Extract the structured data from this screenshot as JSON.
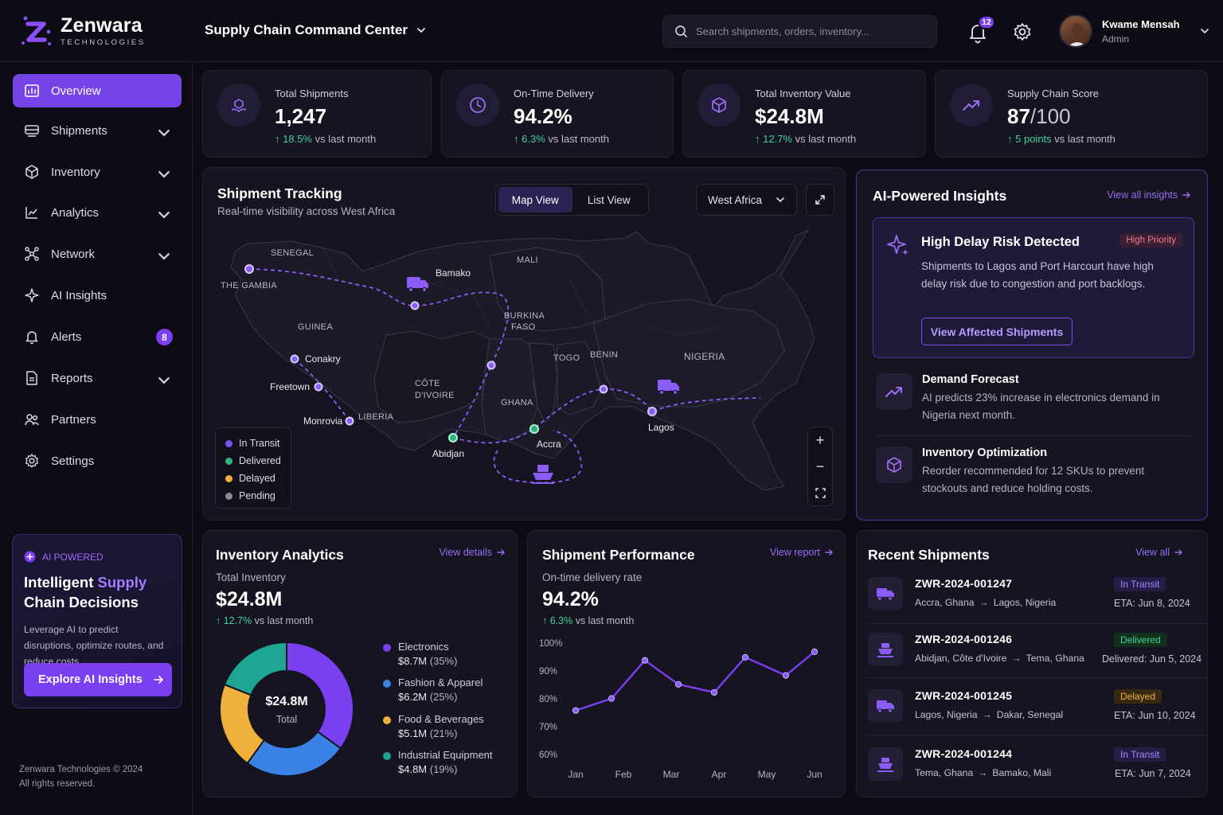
{
  "brand": {
    "name": "Zenwara",
    "sub": "TECHNOLOGIES"
  },
  "header": {
    "title": "Supply Chain Command Center",
    "search_placeholder": "Search shipments, orders, inventory...",
    "notifications": "12",
    "user_name": "Kwame Mensah",
    "user_role": "Admin"
  },
  "sidebar": {
    "items": [
      {
        "label": "Overview",
        "icon": "overview-icon",
        "active": true
      },
      {
        "label": "Shipments",
        "icon": "shipments-icon",
        "chevron": true
      },
      {
        "label": "Inventory",
        "icon": "inventory-icon",
        "chevron": true
      },
      {
        "label": "Analytics",
        "icon": "analytics-icon",
        "chevron": true
      },
      {
        "label": "Network",
        "icon": "network-icon",
        "chevron": true
      },
      {
        "label": "AI Insights",
        "icon": "sparkle-icon"
      },
      {
        "label": "Alerts",
        "icon": "bell-icon",
        "badge": "8"
      },
      {
        "label": "Reports",
        "icon": "reports-icon",
        "chevron": true
      },
      {
        "label": "Partners",
        "icon": "partners-icon"
      },
      {
        "label": "Settings",
        "icon": "gear-icon"
      }
    ],
    "promo": {
      "tag": "AI POWERED",
      "title_a": "Intelligent ",
      "title_b": "Supply",
      "title_c": "Chain Decisions",
      "text": "Leverage AI to predict disruptions, optimize routes, and reduce costs.",
      "button": "Explore AI Insights"
    },
    "footer_1": "Zenwara Technologies © 2024",
    "footer_2": "All rights reserved."
  },
  "kpis": [
    {
      "label": "Total Shipments",
      "value": "1,247",
      "change": "18.5%",
      "change_suffix": " vs last month",
      "icon": "box-hand-icon"
    },
    {
      "label": "On-Time Delivery",
      "value": "94.2%",
      "change": "6.3%",
      "change_suffix": " vs last month",
      "icon": "clock-icon"
    },
    {
      "label": "Total Inventory Value",
      "value": "$24.8M",
      "change": "12.7%",
      "change_suffix": " vs last month",
      "icon": "cube-icon"
    },
    {
      "label": "Supply Chain Score",
      "value": "87",
      "value_suffix": "/100",
      "change": "5 points",
      "change_suffix": " vs last month",
      "icon": "trend-up-icon"
    }
  ],
  "tracking": {
    "title": "Shipment Tracking",
    "subtitle": "Real-time visibility across West Africa",
    "map_view": "Map View",
    "list_view": "List View",
    "region": "West Africa",
    "countries": [
      "SENEGAL",
      "THE GAMBIA",
      "MALI",
      "GUINEA",
      "BURKINA",
      "FASO",
      "TOGO",
      "BENIN",
      "NIGERIA",
      "CÔTE",
      "D'IVOIRE",
      "GHANA",
      "LIBERIA"
    ],
    "cities": [
      "Bamako",
      "Conakry",
      "Freetown",
      "Monrovia",
      "Abidjan",
      "Accra",
      "Lagos"
    ],
    "legend": [
      {
        "label": "In Transit",
        "color": "#7b4ff2"
      },
      {
        "label": "Delivered",
        "color": "#2fb37e"
      },
      {
        "label": "Delayed",
        "color": "#f0b13c"
      },
      {
        "label": "Pending",
        "color": "#8a8898"
      }
    ],
    "zoom_in": "+",
    "zoom_out": "−"
  },
  "insights": {
    "title": "AI-Powered Insights",
    "view_all": "View all insights",
    "alert_title": "High Delay Risk Detected",
    "alert_priority": "High Priority",
    "alert_text": "Shipments to Lagos and Port Harcourt have high delay risk due to congestion and port backlogs.",
    "alert_button": "View Affected Shipments",
    "items": [
      {
        "title": "Demand Forecast",
        "text": "AI predicts 23% increase in electronics demand in Nigeria next month."
      },
      {
        "title": "Inventory Optimization",
        "text": "Reorder recommended for 12 SKUs to prevent stockouts and reduce holding costs."
      }
    ]
  },
  "inventory": {
    "title": "Inventory Analytics",
    "link": "View details",
    "label": "Total Inventory",
    "value": "$24.8M",
    "change": "12.7%",
    "change_suffix": " vs last month",
    "center_value": "$24.8M",
    "center_label": "Total",
    "segments": [
      {
        "name": "Electronics",
        "value": "$8.7M",
        "pct": "(35%)",
        "share": 35,
        "color": "#7b3ff2"
      },
      {
        "name": "Fashion & Apparel",
        "value": "$6.2M",
        "pct": "(25%)",
        "share": 25,
        "color": "#3b82e6"
      },
      {
        "name": "Food & Beverages",
        "value": "$5.1M",
        "pct": "(21%)",
        "share": 21,
        "color": "#f0b13c"
      },
      {
        "name": "Industrial Equipment",
        "value": "$4.8M",
        "pct": "(19%)",
        "share": 19,
        "color": "#1fa593"
      }
    ]
  },
  "performance": {
    "title": "Shipment Performance",
    "link": "View report",
    "label": "On-time delivery rate",
    "value": "94.2%",
    "change": "6.3%",
    "change_suffix": " vs last month"
  },
  "chart_data": {
    "type": "line",
    "title": "",
    "xlabel": "",
    "ylabel": "",
    "x_ticks": [
      "Jan",
      "Feb",
      "Mar",
      "Apr",
      "May",
      "Jun"
    ],
    "y_ticks": [
      "100%",
      "90%",
      "80%",
      "70%",
      "60%"
    ],
    "ylim": [
      60,
      100
    ],
    "x": [
      0,
      0.75,
      1.45,
      2.15,
      2.9,
      3.55,
      4.4,
      5.0
    ],
    "values": [
      75.8,
      80.1,
      93.8,
      85.2,
      82.3,
      94.9,
      88.4,
      96.9
    ],
    "grid": false,
    "color": "#7b3ff2"
  },
  "recent": {
    "title": "Recent Shipments",
    "link": "View all",
    "rows": [
      {
        "id": "ZWR-2024-001247",
        "from": "Accra, Ghana",
        "to": "Lagos, Nigeria",
        "status": "In Transit",
        "status_class": "st-transit",
        "eta": "ETA: Jun 8, 2024",
        "icon": "truck-icon"
      },
      {
        "id": "ZWR-2024-001246",
        "from": "Abidjan, Côte d'Ivoire",
        "to": "Tema, Ghana",
        "status": "Delivered",
        "status_class": "st-delivered",
        "eta": "Delivered: Jun 5, 2024",
        "icon": "ship-icon"
      },
      {
        "id": "ZWR-2024-001245",
        "from": "Lagos, Nigeria",
        "to": "Dakar, Senegal",
        "status": "Delayed",
        "status_class": "st-delayed",
        "eta": "ETA: Jun 10, 2024",
        "icon": "truck-icon"
      },
      {
        "id": "ZWR-2024-001244",
        "from": "Tema, Ghana",
        "to": "Bamako, Mali",
        "status": "In Transit",
        "status_class": "st-transit",
        "eta": "ETA: Jun 7, 2024",
        "icon": "ship-icon"
      }
    ]
  }
}
